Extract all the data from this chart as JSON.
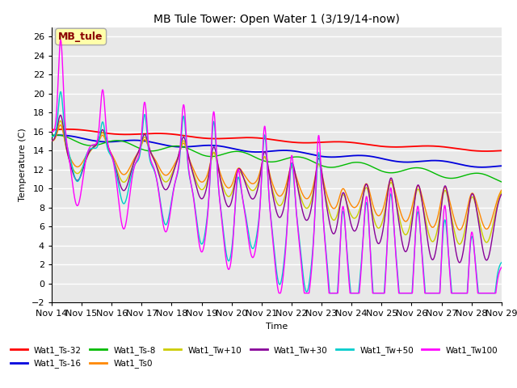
{
  "title": "MB Tule Tower: Open Water 1 (3/19/14-now)",
  "xlabel": "Time",
  "ylabel": "Temperature (C)",
  "ylim": [
    -2,
    27
  ],
  "xlim": [
    0,
    15
  ],
  "background_color": "#ffffff",
  "plot_bg_color": "#e8e8e8",
  "grid_color": "#ffffff",
  "legend_label": "MB_tule",
  "x_tick_labels": [
    "Nov 14",
    "Nov 15",
    "Nov 16",
    "Nov 17",
    "Nov 18",
    "Nov 19",
    "Nov 20",
    "Nov 21",
    "Nov 22",
    "Nov 23",
    "Nov 24",
    "Nov 25",
    "Nov 26",
    "Nov 27",
    "Nov 28",
    "Nov 29"
  ],
  "series": {
    "Wat1_Ts-32": {
      "color": "#ff0000"
    },
    "Wat1_Ts-16": {
      "color": "#0000dd"
    },
    "Wat1_Ts-8": {
      "color": "#00bb00"
    },
    "Wat1_Ts0": {
      "color": "#ff8800"
    },
    "Wat1_Tw+10": {
      "color": "#cccc00"
    },
    "Wat1_Tw+30": {
      "color": "#880099"
    },
    "Wat1_Tw+50": {
      "color": "#00cccc"
    },
    "Wat1_Tw100": {
      "color": "#ff00ff"
    }
  }
}
